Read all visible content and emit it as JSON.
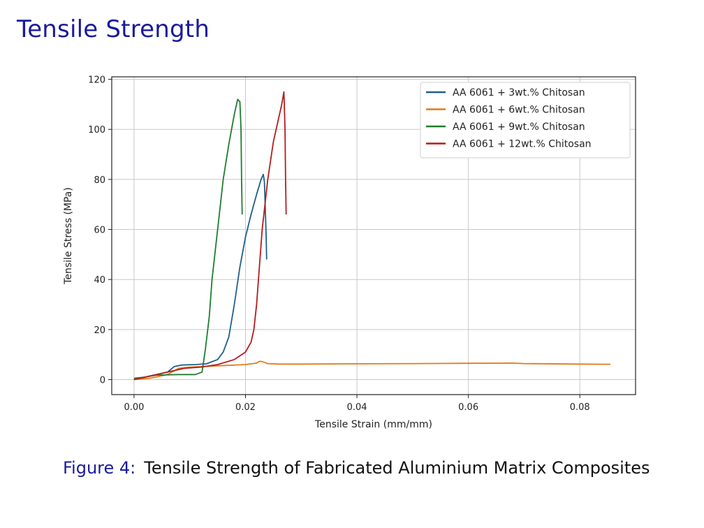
{
  "slide": {
    "title": "Tensile Strength",
    "caption_label": "Figure 4:",
    "caption_text": "Tensile Strength of Fabricated Aluminium Matrix Composites"
  },
  "chart_data": {
    "type": "line",
    "title": "",
    "xlabel": "Tensile Strain (mm/mm)",
    "ylabel": "Tensile Stress (MPa)",
    "xlim": [
      -0.004,
      0.09
    ],
    "ylim": [
      -6,
      121
    ],
    "x_ticks": [
      0.0,
      0.02,
      0.04,
      0.06,
      0.08
    ],
    "x_tick_labels": [
      "0.00",
      "0.02",
      "0.04",
      "0.06",
      "0.08"
    ],
    "y_ticks": [
      0,
      20,
      40,
      60,
      80,
      100,
      120
    ],
    "y_tick_labels": [
      "0",
      "20",
      "40",
      "60",
      "80",
      "100",
      "120"
    ],
    "grid": true,
    "legend_position": "top-right",
    "series": [
      {
        "name": "AA 6061 + 3wt.% Chitosan",
        "color": "#1f5f8b",
        "x": [
          0.0,
          0.003,
          0.006,
          0.0072,
          0.0085,
          0.011,
          0.013,
          0.015,
          0.016,
          0.017,
          0.018,
          0.019,
          0.02,
          0.021,
          0.022,
          0.0228,
          0.0232,
          0.0234,
          0.0237,
          0.0238
        ],
        "y": [
          0.0,
          1.5,
          3.0,
          5.2,
          5.8,
          6.0,
          6.3,
          8.0,
          11.0,
          17.0,
          30.0,
          45.0,
          57.0,
          66.0,
          74.0,
          80.0,
          82.0,
          79.0,
          58.0,
          48.0
        ]
      },
      {
        "name": "AA 6061 + 6wt.% Chitosan",
        "color": "#e07b1a",
        "x": [
          0.0,
          0.003,
          0.006,
          0.008,
          0.01,
          0.015,
          0.02,
          0.022,
          0.0225,
          0.023,
          0.024,
          0.026,
          0.03,
          0.04,
          0.05,
          0.06,
          0.068,
          0.07,
          0.08,
          0.0855
        ],
        "y": [
          0.0,
          0.6,
          2.0,
          4.5,
          5.0,
          5.5,
          6.0,
          6.6,
          7.3,
          7.2,
          6.4,
          6.2,
          6.2,
          6.3,
          6.4,
          6.5,
          6.6,
          6.4,
          6.2,
          6.1
        ]
      },
      {
        "name": "AA 6061 + 9wt.% Chitosan",
        "color": "#1e7d2e",
        "x": [
          0.0,
          0.002,
          0.004,
          0.008,
          0.011,
          0.0122,
          0.0128,
          0.0135,
          0.014,
          0.015,
          0.016,
          0.017,
          0.018,
          0.0186,
          0.019,
          0.0192,
          0.0193,
          0.0194
        ],
        "y": [
          0.5,
          1.0,
          1.8,
          2.0,
          2.0,
          3.0,
          12.0,
          25.0,
          40.0,
          60.0,
          80.0,
          94.0,
          106.0,
          112.0,
          111.0,
          100.0,
          80.0,
          66.0
        ]
      },
      {
        "name": "AA 6061 + 12wt.% Chitosan",
        "color": "#b51c1c",
        "x": [
          0.0,
          0.003,
          0.006,
          0.009,
          0.012,
          0.015,
          0.018,
          0.02,
          0.021,
          0.0215,
          0.022,
          0.0225,
          0.023,
          0.024,
          0.025,
          0.026,
          0.0265,
          0.0269,
          0.0271,
          0.0272,
          0.0273
        ],
        "y": [
          0.0,
          1.5,
          3.0,
          4.5,
          5.0,
          6.0,
          8.0,
          11.0,
          15.0,
          20.0,
          30.0,
          45.0,
          60.0,
          80.0,
          95.0,
          105.0,
          110.0,
          115.0,
          100.0,
          80.0,
          66.0
        ]
      }
    ]
  }
}
